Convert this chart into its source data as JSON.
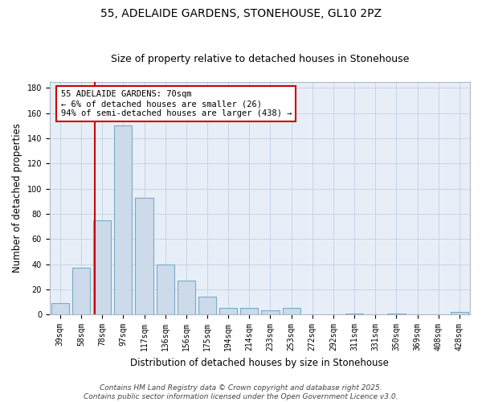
{
  "title_line1": "55, ADELAIDE GARDENS, STONEHOUSE, GL10 2PZ",
  "title_line2": "Size of property relative to detached houses in Stonehouse",
  "xlabel": "Distribution of detached houses by size in Stonehouse",
  "ylabel": "Number of detached properties",
  "categories": [
    "39sqm",
    "58sqm",
    "78sqm",
    "97sqm",
    "117sqm",
    "136sqm",
    "156sqm",
    "175sqm",
    "194sqm",
    "214sqm",
    "233sqm",
    "253sqm",
    "272sqm",
    "292sqm",
    "311sqm",
    "331sqm",
    "350sqm",
    "369sqm",
    "408sqm",
    "428sqm"
  ],
  "values": [
    9,
    37,
    75,
    150,
    93,
    40,
    27,
    14,
    5,
    5,
    3,
    5,
    0,
    0,
    1,
    0,
    1,
    0,
    0,
    2
  ],
  "bar_color": "#ccdaea",
  "bar_edge_color": "#7aaac8",
  "grid_color": "#c8d4e4",
  "background_color": "#e8eef8",
  "vline_color": "#cc0000",
  "vline_pos": 1.63,
  "annotation_text": "55 ADELAIDE GARDENS: 70sqm\n← 6% of detached houses are smaller (26)\n94% of semi-detached houses are larger (438) →",
  "annotation_box_facecolor": "#ffffff",
  "annotation_box_edgecolor": "#cc0000",
  "footer_text": "Contains HM Land Registry data © Crown copyright and database right 2025.\nContains public sector information licensed under the Open Government Licence v3.0.",
  "ylim": [
    0,
    185
  ],
  "yticks": [
    0,
    20,
    40,
    60,
    80,
    100,
    120,
    140,
    160,
    180
  ],
  "title_fontsize": 10,
  "subtitle_fontsize": 9,
  "axis_label_fontsize": 8.5,
  "tick_fontsize": 7,
  "annotation_fontsize": 7.5,
  "footer_fontsize": 6.5
}
